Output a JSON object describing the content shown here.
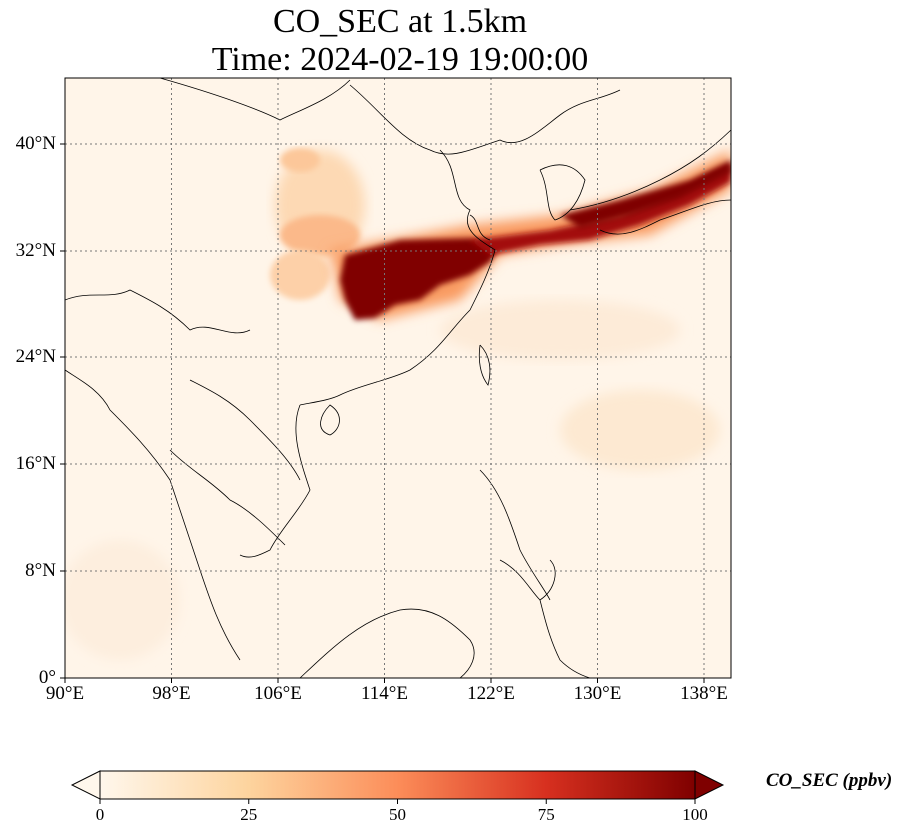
{
  "title_line1": "CO_SEC at 1.5km",
  "title_line2": "Time: 2024-02-19 19:00:00",
  "lat_labels": [
    "40°N",
    "32°N",
    "24°N",
    "16°N",
    "8°N",
    "0°"
  ],
  "lon_labels": [
    "90°E",
    "98°E",
    "106°E",
    "114°E",
    "122°E",
    "130°E",
    "138°E"
  ],
  "colorbar": {
    "label": "CO_SEC (ppbv)",
    "ticks": [
      "0",
      "25",
      "50",
      "75",
      "100"
    ],
    "min": 0,
    "max": 100,
    "colormap": [
      "#fff7ec",
      "#fdd49e",
      "#fc8d59",
      "#d7301f",
      "#7f0000"
    ]
  },
  "map_extent": {
    "lon_min": 90,
    "lon_max": 140,
    "lat_min": 0,
    "lat_max": 45
  },
  "gridlines": "dotted"
}
